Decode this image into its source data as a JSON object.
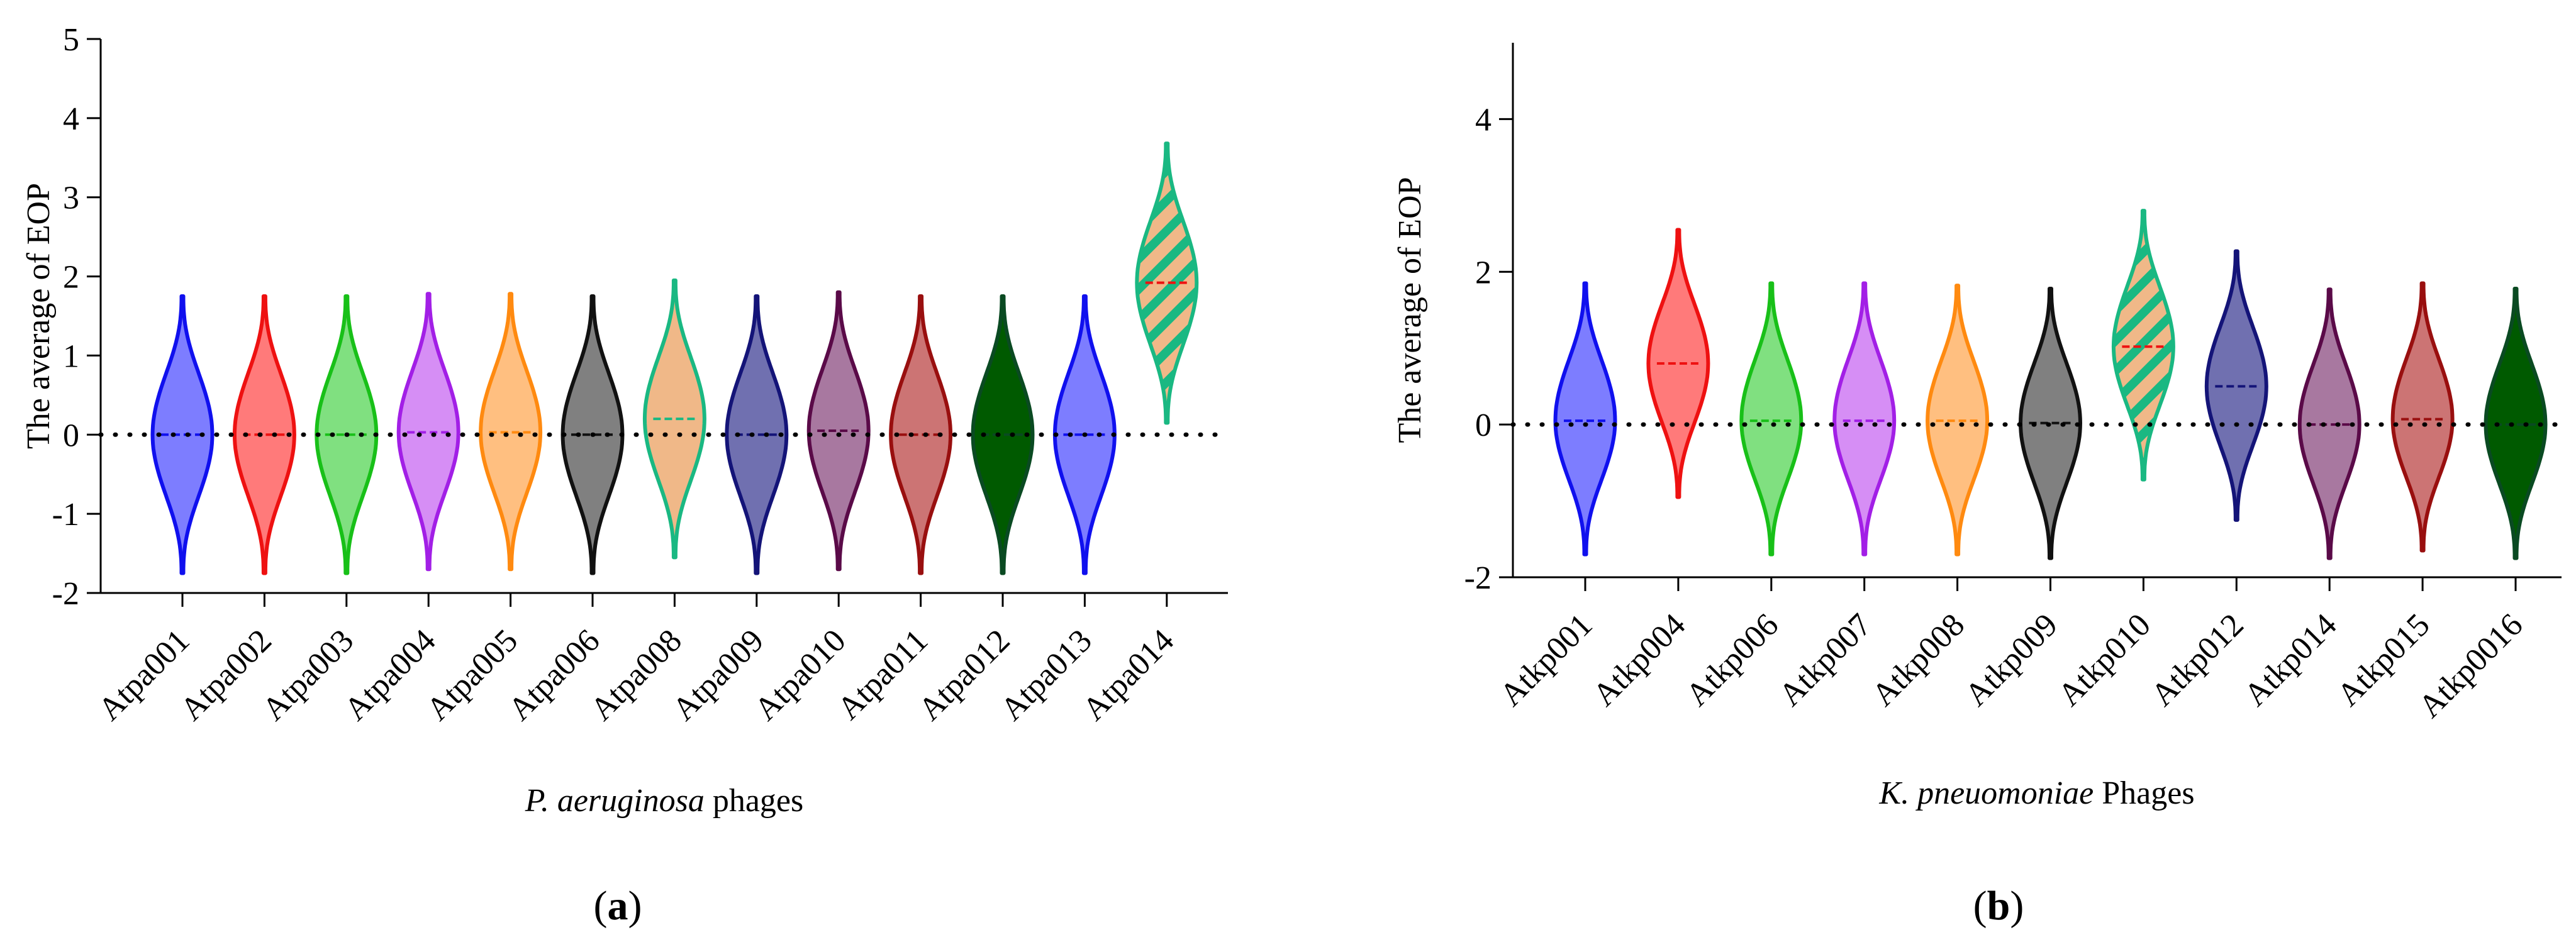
{
  "chart_data": [
    {
      "type": "violin",
      "panel_label": {
        "before": "(",
        "letter": "a",
        "after": ")"
      },
      "ylabel": "The average of EOP",
      "xlabel": {
        "italic": "P. aeruginosa",
        "rest": " phages"
      },
      "ylim": [
        -2,
        5
      ],
      "yticks": [
        -2,
        -1,
        0,
        1,
        2,
        3,
        4,
        5
      ],
      "reference_line": 0,
      "categories": [
        "Atpa001",
        "Atpa002",
        "Atpa003",
        "Atpa004",
        "Atpa005",
        "Atpa006",
        "Atpa008",
        "Atpa009",
        "Atpa010",
        "Atpa011",
        "Atpa012",
        "Atpa013",
        "Atpa014"
      ],
      "series": [
        {
          "min": -1.75,
          "max": 1.75,
          "median": 0.0,
          "color": "#1010ee",
          "fill": "#7d7dff"
        },
        {
          "min": -1.75,
          "max": 1.75,
          "median": 0.0,
          "color": "#ee1111",
          "fill": "#ff7a7a"
        },
        {
          "min": -1.75,
          "max": 1.75,
          "median": 0.0,
          "color": "#18c018",
          "fill": "#80e080"
        },
        {
          "min": -1.7,
          "max": 1.78,
          "median": 0.03,
          "color": "#a21fe6",
          "fill": "#d68ef5"
        },
        {
          "min": -1.7,
          "max": 1.78,
          "median": 0.03,
          "color": "#ff8a10",
          "fill": "#ffbf80"
        },
        {
          "min": -1.75,
          "max": 1.75,
          "median": 0.0,
          "color": "#111111",
          "fill": "#808080"
        },
        {
          "min": -1.55,
          "max": 1.95,
          "median": 0.2,
          "color": "#1ab882",
          "fill": "#f0b888"
        },
        {
          "min": -1.75,
          "max": 1.75,
          "median": 0.0,
          "color": "#141478",
          "fill": "#7070b0"
        },
        {
          "min": -1.7,
          "max": 1.8,
          "median": 0.05,
          "color": "#5a0a48",
          "fill": "#a878a0"
        },
        {
          "min": -1.75,
          "max": 1.75,
          "median": 0.0,
          "color": "#990f0f",
          "fill": "#cc7474"
        },
        {
          "min": -1.75,
          "max": 1.75,
          "median": 0.0,
          "color": "#0a4a22",
          "fill": "#005a00"
        },
        {
          "min": -1.75,
          "max": 1.75,
          "median": 0.0,
          "color": "#1010ee",
          "fill": "#7d7dff"
        },
        {
          "min": 0.15,
          "max": 3.68,
          "median": 1.92,
          "color": "#1ab882",
          "fill": "#f0b888",
          "pattern": "hatch"
        }
      ]
    },
    {
      "type": "violin",
      "panel_label": {
        "before": "(",
        "letter": "b",
        "after": ")"
      },
      "ylabel": "The average of EOP",
      "xlabel": {
        "italic": "K. pneuomoniae",
        "rest": " Phages"
      },
      "ylim": [
        -2,
        5
      ],
      "yticks": [
        -2,
        0,
        2,
        4
      ],
      "reference_line": 0,
      "categories": [
        "Atkp001",
        "Atkp004",
        "Atkp006",
        "Atkp007",
        "Atkp008",
        "Atkp009",
        "Atkp010",
        "Atkp012",
        "Atkp014",
        "Atkp015",
        "Atkp0016"
      ],
      "series": [
        {
          "min": -1.7,
          "max": 1.85,
          "median": 0.05,
          "color": "#1010ee",
          "fill": "#7d7dff"
        },
        {
          "min": -0.95,
          "max": 2.55,
          "median": 0.8,
          "color": "#ee1111",
          "fill": "#ff7a7a"
        },
        {
          "min": -1.7,
          "max": 1.85,
          "median": 0.05,
          "color": "#18c018",
          "fill": "#80e080"
        },
        {
          "min": -1.7,
          "max": 1.85,
          "median": 0.05,
          "color": "#a21fe6",
          "fill": "#d68ef5"
        },
        {
          "min": -1.7,
          "max": 1.82,
          "median": 0.05,
          "color": "#ff8a10",
          "fill": "#ffbf80"
        },
        {
          "min": -1.75,
          "max": 1.78,
          "median": 0.02,
          "color": "#111111",
          "fill": "#808080"
        },
        {
          "min": -0.72,
          "max": 2.8,
          "median": 1.02,
          "color": "#1ab882",
          "fill": "#f0b888",
          "pattern": "hatch"
        },
        {
          "min": -1.25,
          "max": 2.27,
          "median": 0.5,
          "color": "#141478",
          "fill": "#7070b0"
        },
        {
          "min": -1.75,
          "max": 1.77,
          "median": 0.0,
          "color": "#5a0a48",
          "fill": "#a878a0"
        },
        {
          "min": -1.65,
          "max": 1.85,
          "median": 0.07,
          "color": "#990f0f",
          "fill": "#cc7474"
        },
        {
          "min": -1.75,
          "max": 1.78,
          "median": 0.0,
          "color": "#0a4a22",
          "fill": "#005a00"
        }
      ]
    }
  ]
}
